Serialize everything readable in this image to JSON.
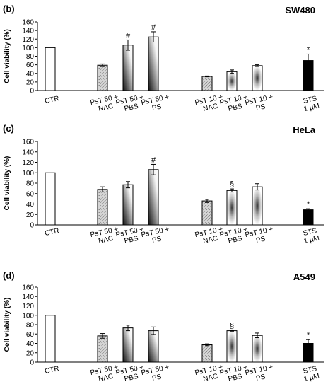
{
  "chart_data": [
    {
      "type": "bar",
      "panel_label": "(b)",
      "title": "SW480",
      "ylabel": "Cell viability (%)",
      "ylim": [
        0,
        160
      ],
      "yticks": [
        0,
        20,
        40,
        60,
        80,
        100,
        120,
        140,
        160
      ],
      "categories": [
        "CTR",
        "PsT 50 + NAC",
        "PsT 50 + PBS",
        "PsT 50 + PS",
        "PsT 10 + NAC",
        "PsT 10 + PBS",
        "PsT 10 + PS",
        "STS 1 µM"
      ],
      "category_lines": [
        [
          "CTR"
        ],
        [
          "PsT 50 +",
          "NAC"
        ],
        [
          "PsT 50 +",
          "PBS"
        ],
        [
          "PsT 50 +",
          "PS"
        ],
        [
          "PsT 10 +",
          "NAC"
        ],
        [
          "PsT 10 +",
          "PBS"
        ],
        [
          "PsT 10 +",
          "PS"
        ],
        [
          "STS",
          "1 µM"
        ]
      ],
      "values": [
        100,
        59,
        106,
        125,
        33,
        44,
        58,
        70
      ],
      "errors": [
        0,
        3,
        12,
        12,
        1,
        4,
        2,
        15
      ],
      "annotations": [
        "",
        "",
        "#",
        "#",
        "",
        "",
        "",
        "*"
      ]
    },
    {
      "type": "bar",
      "panel_label": "(c)",
      "title": "HeLa",
      "ylabel": "Cell viability (%)",
      "ylim": [
        0,
        160
      ],
      "yticks": [
        0,
        20,
        40,
        60,
        80,
        100,
        120,
        140,
        160
      ],
      "categories": [
        "CTR",
        "PsT 50 + NAC",
        "PsT 50 + PBS",
        "PsT 50 + PS",
        "PsT 10 + NAC",
        "PsT 10 + PBS",
        "PsT 10 + PS",
        "STS 1 µM"
      ],
      "category_lines": [
        [
          "CTR"
        ],
        [
          "PsT 50 +",
          "NAC"
        ],
        [
          "PsT 50 +",
          "PBS"
        ],
        [
          "PsT 50 +",
          "PS"
        ],
        [
          "PsT 10 +",
          "NAC"
        ],
        [
          "PsT 10 +",
          "PBS"
        ],
        [
          "PsT 10 +",
          "PS"
        ],
        [
          "STS",
          "1 µM"
        ]
      ],
      "values": [
        100,
        68,
        77,
        106,
        46,
        66,
        73,
        29
      ],
      "errors": [
        0,
        5,
        6,
        10,
        3,
        3,
        6,
        2
      ],
      "annotations": [
        "",
        "",
        "",
        "#",
        "",
        "§",
        "",
        "*"
      ]
    },
    {
      "type": "bar",
      "panel_label": "(d)",
      "title": "A549",
      "ylabel": "Cell viability (%)",
      "ylim": [
        0,
        160
      ],
      "yticks": [
        0,
        20,
        40,
        60,
        80,
        100,
        120,
        140,
        160
      ],
      "categories": [
        "CTR",
        "PsT 50 + NAC",
        "PsT 50 + PBS",
        "PsT 50 + PS",
        "PsT 10 + NAC",
        "PsT 10 + PBS",
        "PsT 10 + PS",
        "STS 1 µM"
      ],
      "category_lines": [
        [
          "CTR"
        ],
        [
          "PsT 50 +",
          "NAC"
        ],
        [
          "PsT 50 +",
          "PBS"
        ],
        [
          "PsT 50 +",
          "PS"
        ],
        [
          "PsT 10 +",
          "NAC"
        ],
        [
          "PsT 10 +",
          "PBS"
        ],
        [
          "PsT 10 +",
          "PS"
        ],
        [
          "STS",
          "1 µM"
        ]
      ],
      "values": [
        100,
        56,
        73,
        67,
        37,
        67,
        57,
        40
      ],
      "errors": [
        0,
        5,
        6,
        8,
        2,
        1,
        5,
        8
      ],
      "annotations": [
        "",
        "",
        "",
        "",
        "",
        "§",
        "",
        "*"
      ]
    }
  ],
  "colors": {
    "axis": "#000000",
    "ctr_fill": "#ffffff",
    "nac_fill": "#c8c8c8",
    "gradient_dark": "#1a1a1a",
    "sts_fill": "#000000"
  },
  "bar_styles": [
    "white",
    "speckle",
    "dark-bottom",
    "dark-bottom",
    "speckle",
    "dark-center",
    "dark-center",
    "black"
  ]
}
